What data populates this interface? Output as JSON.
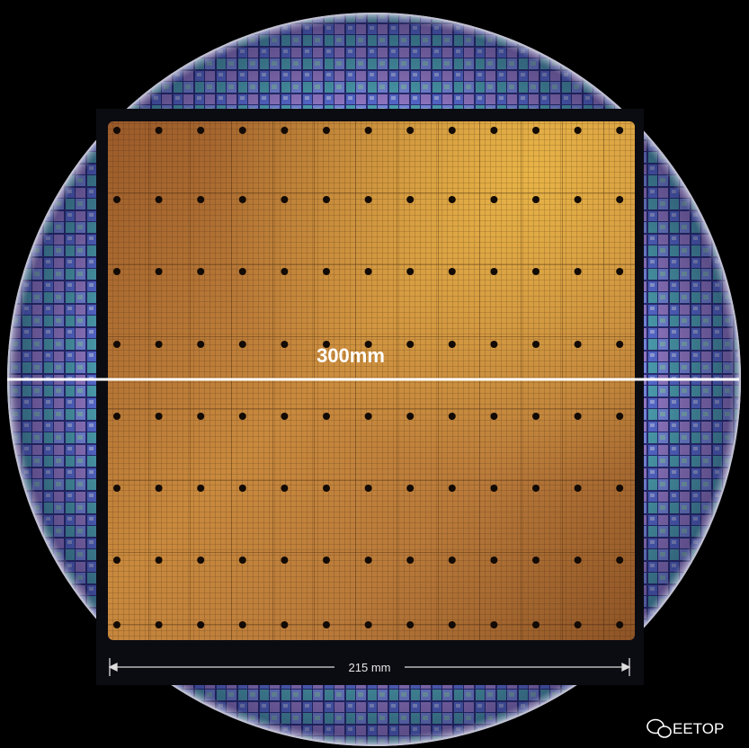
{
  "annotations": {
    "diameter": "300mm",
    "chip_width": "215 mm"
  },
  "watermark": "EETOP"
}
